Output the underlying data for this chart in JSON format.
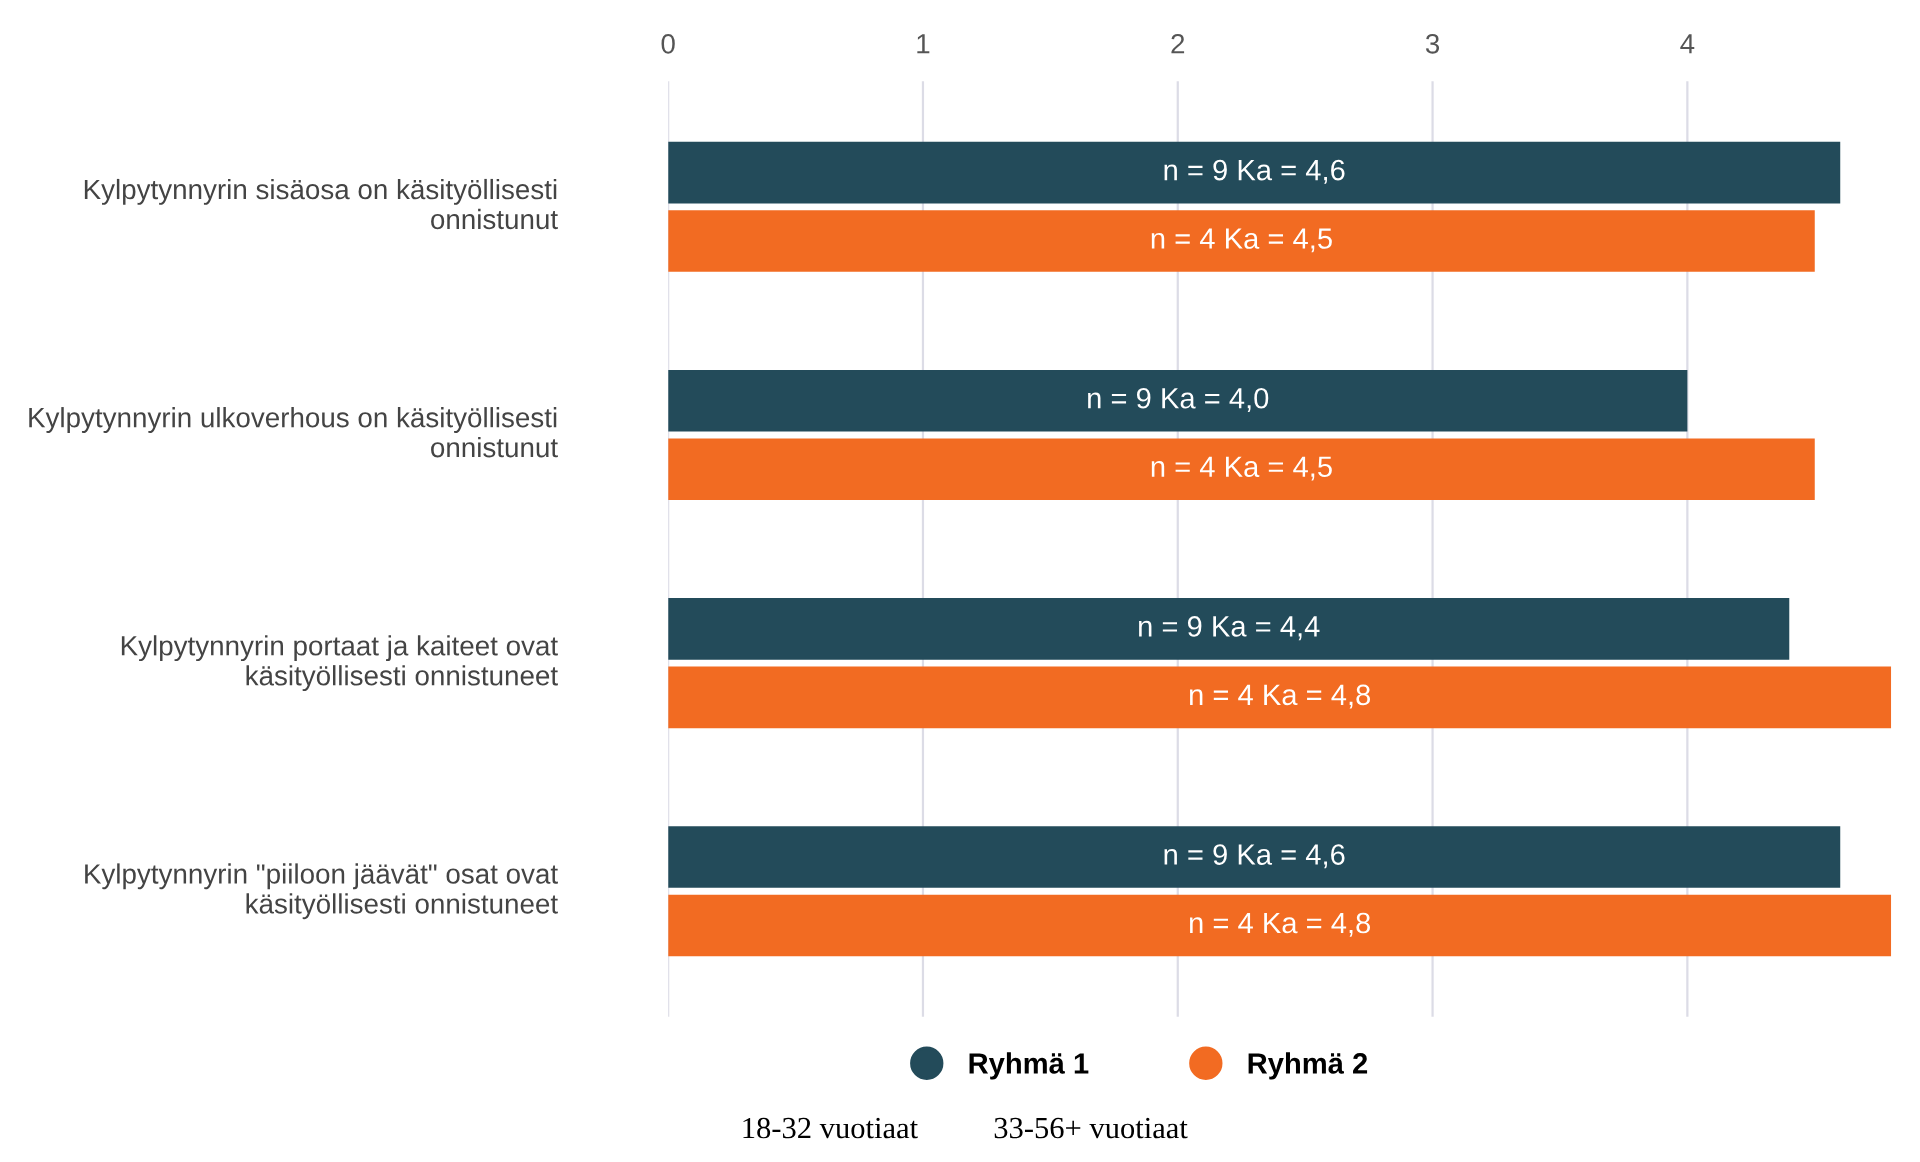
{
  "chart_data": {
    "type": "bar",
    "orientation": "horizontal",
    "categories": [
      "Kylpytynnyrin sisäosa on käsityöllisesti onnistunut",
      "Kylpytynnyrin ulkoverhous on käsityöllisesti onnistunut",
      "Kylpytynnyrin portaat ja kaiteet ovat käsityöllisesti onnistuneet",
      "Kylpytynnyrin \"piiloon jäävät\" osat ovat käsityöllisesti onnistuneet"
    ],
    "series": [
      {
        "name": "Ryhmä 1",
        "color": "#234b5a",
        "values": [
          4.6,
          4.0,
          4.4,
          4.6
        ],
        "value_labels": [
          "n = 9 Ka = 4,6",
          "n = 9 Ka = 4,0",
          "n = 9 Ka = 4,4",
          "n = 9 Ka = 4,6"
        ]
      },
      {
        "name": "Ryhmä 2",
        "color": "#f26b22",
        "values": [
          4.5,
          4.5,
          4.8,
          4.8
        ],
        "value_labels": [
          "n = 4 Ka = 4,5",
          "n = 4 Ka = 4,5",
          "n = 4 Ka = 4,8",
          "n = 4 Ka = 4,8"
        ]
      }
    ],
    "xlim": [
      0,
      4.8
    ],
    "xticks": [
      0,
      1,
      2,
      3,
      4
    ],
    "grid": "x",
    "legend": "bottom",
    "annotations": [
      "18-32 vuotiaat",
      "33-56+ vuotiaat"
    ]
  }
}
